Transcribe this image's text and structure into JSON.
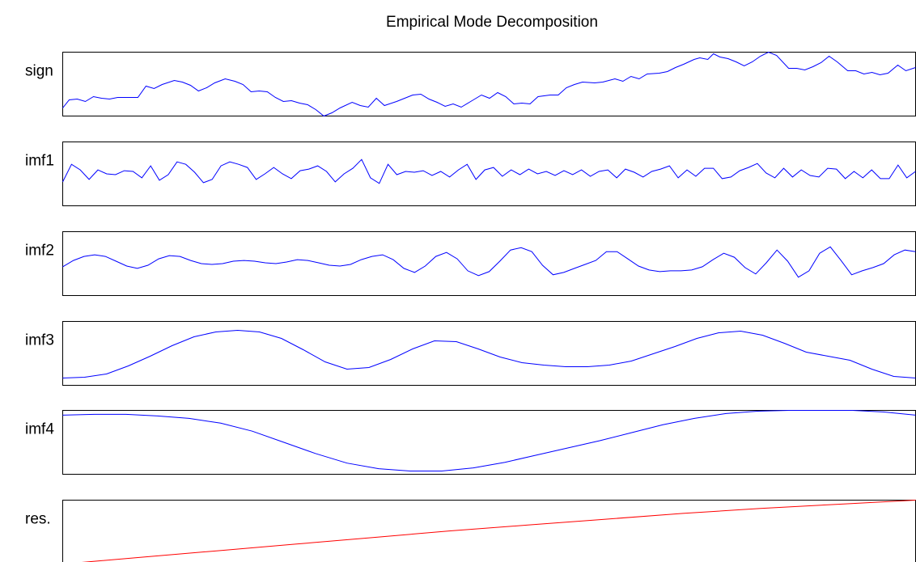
{
  "title": "Empirical Mode Decomposition",
  "chart_data": [
    {
      "type": "line",
      "ylabel": "sign",
      "color": "#0000ff",
      "xlim": [
        0,
        1055
      ],
      "ylim": [
        0,
        79
      ],
      "x": [
        0,
        8,
        18,
        28,
        38,
        48,
        58,
        68,
        78,
        93,
        103,
        113,
        123,
        138,
        148,
        158,
        168,
        178,
        188,
        201,
        213,
        223,
        233,
        243,
        253,
        263,
        273,
        283,
        293,
        303,
        313,
        323,
        333,
        343,
        358,
        368,
        378,
        388,
        398,
        413,
        423,
        433,
        443,
        453,
        463,
        473,
        483,
        493,
        503,
        518,
        528,
        538,
        548,
        558,
        568,
        578,
        588,
        603,
        613,
        623,
        633,
        643,
        658,
        668,
        683,
        693,
        703,
        713,
        723,
        738,
        748,
        758,
        768,
        781,
        788,
        798,
        805,
        813,
        823,
        833,
        843,
        853,
        863,
        873,
        883,
        898,
        908,
        918,
        928,
        938,
        948,
        958,
        971,
        981,
        991,
        1001,
        1011,
        1021,
        1033,
        1043,
        1055
      ],
      "values": [
        10,
        20,
        21,
        18,
        24,
        22,
        21,
        23,
        23,
        23,
        37,
        34,
        39,
        44,
        42,
        38,
        31,
        35,
        41,
        46,
        43,
        39,
        30,
        31,
        30,
        23,
        18,
        19,
        16,
        14,
        8,
        0,
        4,
        10,
        17,
        13,
        11,
        22,
        13,
        18,
        22,
        26,
        27,
        21,
        17,
        12,
        15,
        11,
        17,
        26,
        22,
        29,
        24,
        15,
        16,
        15,
        24,
        26,
        26,
        35,
        39,
        42,
        41,
        42,
        46,
        43,
        49,
        46,
        52,
        53,
        55,
        60,
        64,
        70,
        72,
        70,
        77,
        73,
        71,
        67,
        62,
        67,
        74,
        79,
        75,
        59,
        59,
        57,
        61,
        66,
        74,
        67,
        56,
        56,
        52,
        54,
        51,
        53,
        63,
        56,
        60
      ]
    },
    {
      "type": "line",
      "ylabel": "imf1",
      "color": "#0000ff",
      "ylim": [
        0,
        80
      ],
      "values": [
        30,
        52,
        45,
        33,
        45,
        40,
        39,
        44,
        43,
        35,
        50,
        32,
        39,
        55,
        52,
        42,
        29,
        33,
        50,
        55,
        52,
        48,
        33,
        40,
        48,
        40,
        34,
        44,
        46,
        50,
        43,
        30,
        40,
        47,
        58,
        35,
        28,
        52,
        39,
        43,
        42,
        44,
        38,
        43,
        36,
        45,
        52,
        33,
        45,
        48,
        37,
        45,
        39,
        46,
        40,
        43,
        38,
        44,
        39,
        45,
        37,
        43,
        45,
        35,
        46,
        42,
        36,
        43,
        46,
        50,
        35,
        45,
        37,
        47,
        47,
        34,
        36,
        44,
        48,
        53,
        41,
        35,
        47,
        36,
        45,
        38,
        36,
        47,
        46,
        34,
        43,
        35,
        45,
        34,
        34,
        51,
        35,
        43
      ]
    },
    {
      "type": "line",
      "ylabel": "imf2",
      "color": "#0000ff",
      "ylim": [
        0,
        80
      ],
      "values": [
        36,
        44,
        49,
        51,
        49,
        43,
        37,
        34,
        38,
        46,
        50,
        49,
        44,
        40,
        39,
        40,
        43,
        44,
        43,
        41,
        40,
        42,
        45,
        44,
        41,
        38,
        37,
        39,
        45,
        49,
        51,
        45,
        34,
        29,
        37,
        49,
        54,
        46,
        31,
        25,
        30,
        43,
        57,
        60,
        55,
        38,
        26,
        29,
        34,
        39,
        44,
        55,
        55,
        46,
        37,
        32,
        30,
        31,
        31,
        32,
        36,
        45,
        53,
        48,
        35,
        27,
        41,
        57,
        43,
        23,
        31,
        53,
        61,
        44,
        26,
        31,
        35,
        40,
        51,
        57,
        55
      ]
    },
    {
      "type": "line",
      "ylabel": "imf3",
      "color": "#0000ff",
      "ylim": [
        0,
        79
      ],
      "values": [
        9,
        10,
        14,
        24,
        36,
        49,
        60,
        66,
        68,
        66,
        58,
        44,
        29,
        20,
        22,
        32,
        45,
        55,
        54,
        45,
        35,
        28,
        25,
        23,
        23,
        25,
        30,
        39,
        48,
        58,
        65,
        67,
        62,
        52,
        41,
        36,
        31,
        20,
        11,
        9
      ]
    },
    {
      "type": "line",
      "ylabel": "imf4",
      "color": "#0000ff",
      "ylim": [
        0,
        80
      ],
      "values": [
        74,
        75,
        75,
        73,
        70,
        64,
        54,
        40,
        26,
        14,
        7,
        4,
        4,
        8,
        15,
        24,
        33,
        42,
        52,
        62,
        70,
        76,
        79,
        80,
        80,
        80,
        78,
        74
      ]
    },
    {
      "type": "line",
      "ylabel": "res.",
      "color": "#ff0000",
      "ylim": [
        0,
        77
      ],
      "values": [
        0,
        8,
        16,
        24,
        32,
        40,
        47,
        54,
        61,
        67,
        72,
        77
      ]
    }
  ]
}
